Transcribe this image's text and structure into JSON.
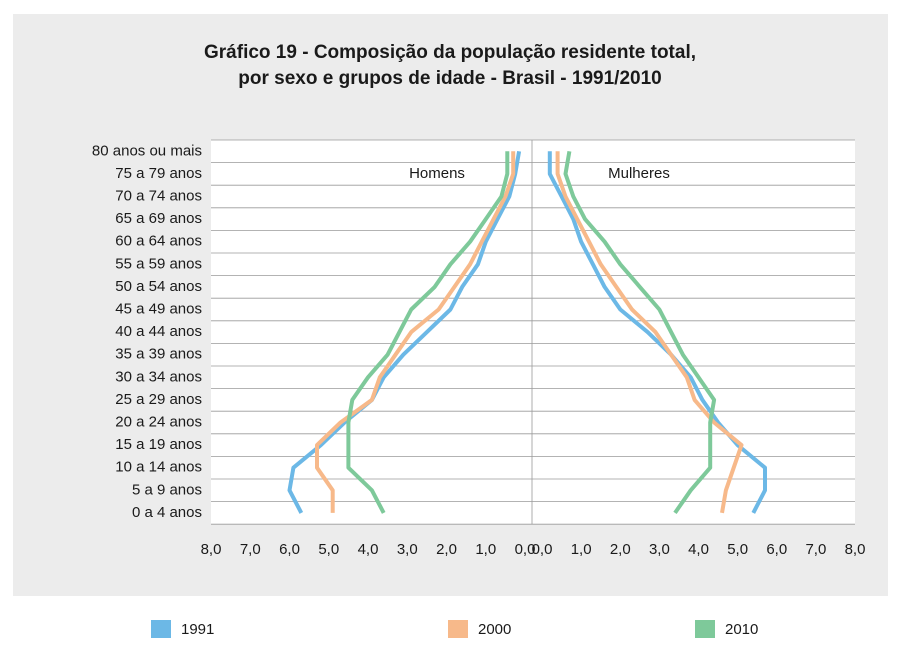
{
  "chart_data": {
    "type": "pyramid_line",
    "title": [
      "Gráfico 19 - Composição da população residente total,",
      "por sexo e grupos de idade - Brasil - 1991/2010"
    ],
    "categories": [
      "80 anos ou mais",
      "75 a 79 anos",
      "70 a 74 anos",
      "65 a 69 anos",
      "60 a 64 anos",
      "55 a 59 anos",
      "50 a 54 anos",
      "45 a 49 anos",
      "40 a 44 anos",
      "35 a 39 anos",
      "30 a 34 anos",
      "25 a 29 anos",
      "20 a 24 anos",
      "15 a 19 anos",
      "10 a 14 anos",
      "5 a 9 anos",
      "0 a 4 anos"
    ],
    "left_label": "Homens",
    "right_label": "Mulheres",
    "left_xlim": [
      8,
      0
    ],
    "right_xlim": [
      0,
      8
    ],
    "left_xticks": [
      {
        "value": 8,
        "label": "8,0"
      },
      {
        "value": 7,
        "label": "7,0"
      },
      {
        "value": 6,
        "label": "6,0"
      },
      {
        "value": 5,
        "label": "5,0"
      },
      {
        "value": 4,
        "label": "4,0"
      },
      {
        "value": 3,
        "label": "3,0"
      },
      {
        "value": 2,
        "label": "2,0"
      },
      {
        "value": 1,
        "label": "1,0"
      },
      {
        "value": 0,
        "label": "0,0"
      }
    ],
    "right_xticks": [
      {
        "value": 0,
        "label": "0,0"
      },
      {
        "value": 1,
        "label": "1,0"
      },
      {
        "value": 2,
        "label": "2,0"
      },
      {
        "value": 3,
        "label": "3,0"
      },
      {
        "value": 4,
        "label": "4,0"
      },
      {
        "value": 5,
        "label": "5,0"
      },
      {
        "value": 6,
        "label": "6,0"
      },
      {
        "value": 7,
        "label": "7,0"
      },
      {
        "value": 8,
        "label": "8,0"
      }
    ],
    "grid": true,
    "series": [
      {
        "name": "1991",
        "color": "#6cb8e6",
        "left_values": [
          0.15,
          0.25,
          0.4,
          0.7,
          1.0,
          1.2,
          1.6,
          1.9,
          2.5,
          3.1,
          3.6,
          3.9,
          4.6,
          5.2,
          5.9,
          6.0,
          5.7
        ],
        "right_values": [
          0.2,
          0.2,
          0.5,
          0.8,
          1.0,
          1.3,
          1.6,
          2.0,
          2.7,
          3.3,
          3.8,
          4.1,
          4.5,
          5.0,
          5.7,
          5.7,
          5.4
        ]
      },
      {
        "name": "2000",
        "color": "#f7b98a",
        "left_values": [
          0.3,
          0.3,
          0.5,
          0.8,
          1.1,
          1.4,
          1.8,
          2.2,
          2.9,
          3.3,
          3.7,
          3.9,
          4.7,
          5.3,
          5.3,
          4.9,
          4.9
        ],
        "right_values": [
          0.4,
          0.4,
          0.6,
          0.9,
          1.2,
          1.5,
          1.9,
          2.3,
          2.9,
          3.3,
          3.7,
          3.9,
          4.4,
          5.1,
          4.9,
          4.7,
          4.6
        ]
      },
      {
        "name": "2010",
        "color": "#7ec99a",
        "left_values": [
          0.45,
          0.45,
          0.6,
          1.0,
          1.4,
          1.9,
          2.3,
          2.9,
          3.2,
          3.5,
          4.0,
          4.4,
          4.5,
          4.5,
          4.5,
          3.9,
          3.6
        ],
        "right_values": [
          0.7,
          0.6,
          0.8,
          1.1,
          1.6,
          2.0,
          2.5,
          3.0,
          3.3,
          3.6,
          4.0,
          4.4,
          4.3,
          4.3,
          4.3,
          3.8,
          3.4
        ]
      }
    ]
  }
}
